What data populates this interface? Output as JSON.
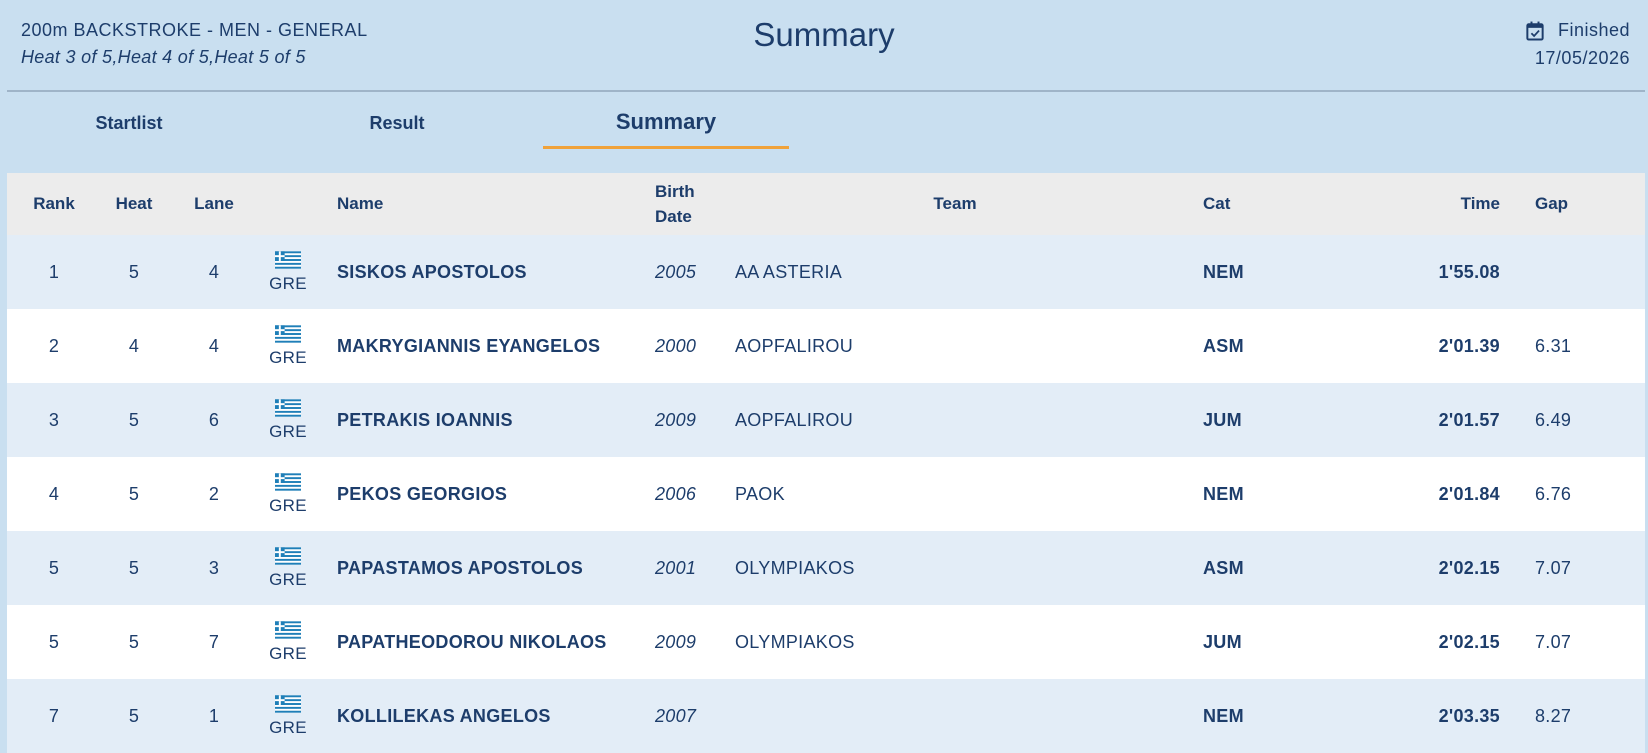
{
  "header": {
    "event_title": "200m BACKSTROKE - MEN - GENERAL",
    "heats": "Heat 3 of 5,Heat 4 of 5,Heat 5 of 5",
    "page_title": "Summary",
    "status": "Finished",
    "date": "17/05/2026"
  },
  "tabs": [
    {
      "label": "Startlist",
      "active": false
    },
    {
      "label": "Result",
      "active": false
    },
    {
      "label": "Summary",
      "active": true
    }
  ],
  "columns": {
    "rank": "Rank",
    "heat": "Heat",
    "lane": "Lane",
    "name": "Name",
    "birth_line1": "Birth",
    "birth_line2": "Date",
    "team": "Team",
    "cat": "Cat",
    "time": "Time",
    "gap": "Gap"
  },
  "colors": {
    "accent": "#f0a23a",
    "text": "#1d3d6b",
    "flag_blue": "#1f7fb8"
  },
  "rows": [
    {
      "rank": "1",
      "heat": "5",
      "lane": "4",
      "nat": "GRE",
      "name": "SISKOS APOSTOLOS",
      "birth": "2005",
      "team": "AA ASTERIA",
      "cat": "NEM",
      "time": "1'55.08",
      "gap": ""
    },
    {
      "rank": "2",
      "heat": "4",
      "lane": "4",
      "nat": "GRE",
      "name": "MAKRYGIANNIS EYANGELOS",
      "birth": "2000",
      "team": "AOPFALIROU",
      "cat": "ASM",
      "time": "2'01.39",
      "gap": "6.31"
    },
    {
      "rank": "3",
      "heat": "5",
      "lane": "6",
      "nat": "GRE",
      "name": "PETRAKIS IOANNIS",
      "birth": "2009",
      "team": "AOPFALIROU",
      "cat": "JUM",
      "time": "2'01.57",
      "gap": "6.49"
    },
    {
      "rank": "4",
      "heat": "5",
      "lane": "2",
      "nat": "GRE",
      "name": "PEKOS GEORGIOS",
      "birth": "2006",
      "team": "PAOK",
      "cat": "NEM",
      "time": "2'01.84",
      "gap": "6.76"
    },
    {
      "rank": "5",
      "heat": "5",
      "lane": "3",
      "nat": "GRE",
      "name": "PAPASTAMOS APOSTOLOS",
      "birth": "2001",
      "team": "OLYMPIAKOS",
      "cat": "ASM",
      "time": "2'02.15",
      "gap": "7.07"
    },
    {
      "rank": "5",
      "heat": "5",
      "lane": "7",
      "nat": "GRE",
      "name": "PAPATHEODOROU NIKOLAOS",
      "birth": "2009",
      "team": "OLYMPIAKOS",
      "cat": "JUM",
      "time": "2'02.15",
      "gap": "7.07"
    },
    {
      "rank": "7",
      "heat": "5",
      "lane": "1",
      "nat": "GRE",
      "name": "KOLLILEKAS ANGELOS",
      "birth": "2007",
      "team": "",
      "cat": "NEM",
      "time": "2'03.35",
      "gap": "8.27"
    }
  ]
}
